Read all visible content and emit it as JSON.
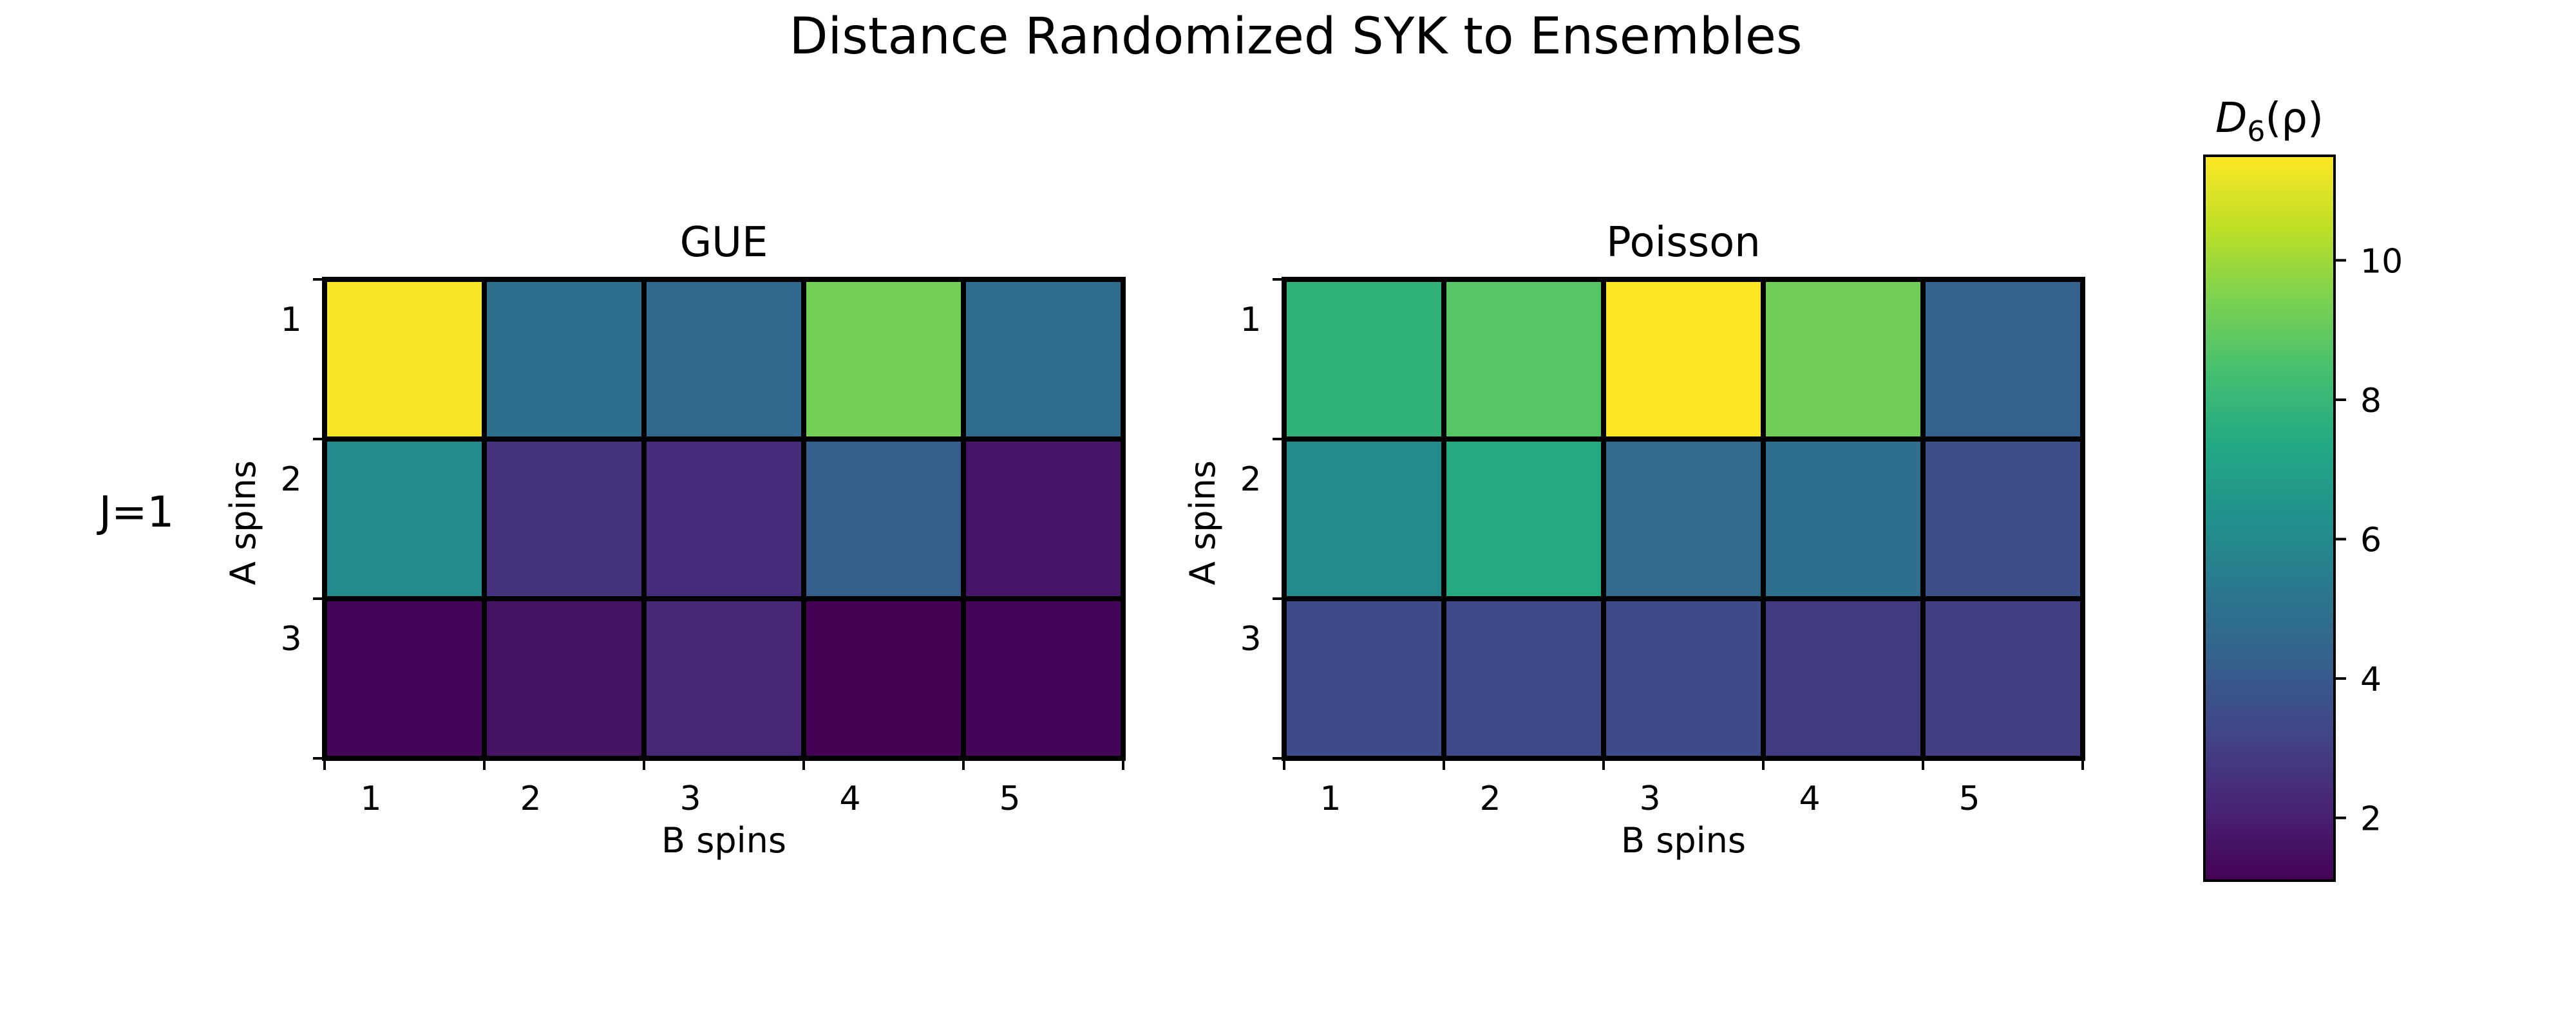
{
  "title": "Distance Randomized SYK to Ensembles",
  "row_label": "J=1",
  "chart_data": [
    {
      "type": "heatmap",
      "title": "GUE",
      "xlabel": "B spins",
      "ylabel": "A spins",
      "x_ticks": [
        "1",
        "2",
        "3",
        "4",
        "5"
      ],
      "y_ticks": [
        "1",
        "2",
        "3"
      ],
      "values": [
        [
          11.4,
          4.9,
          4.6,
          9.3,
          4.8
        ],
        [
          6.0,
          2.6,
          2.4,
          4.2,
          1.7
        ],
        [
          1.2,
          1.6,
          2.2,
          1.1,
          1.2
        ]
      ]
    },
    {
      "type": "heatmap",
      "title": "Poisson",
      "xlabel": "B spins",
      "ylabel": "A spins",
      "x_ticks": [
        "1",
        "2",
        "3",
        "4",
        "5"
      ],
      "y_ticks": [
        "1",
        "2",
        "3"
      ],
      "values": [
        [
          7.8,
          8.7,
          11.5,
          9.2,
          4.3
        ],
        [
          6.0,
          7.4,
          4.7,
          4.9,
          3.6
        ],
        [
          3.5,
          3.4,
          3.5,
          2.9,
          3.0
        ]
      ]
    }
  ],
  "colorbar": {
    "label": "D",
    "label_subscript": "6",
    "label_arg": "(ρ)",
    "cmap": "viridis",
    "range": [
      1.1,
      11.5
    ],
    "ticks": [
      "2",
      "4",
      "6",
      "8",
      "10"
    ]
  }
}
